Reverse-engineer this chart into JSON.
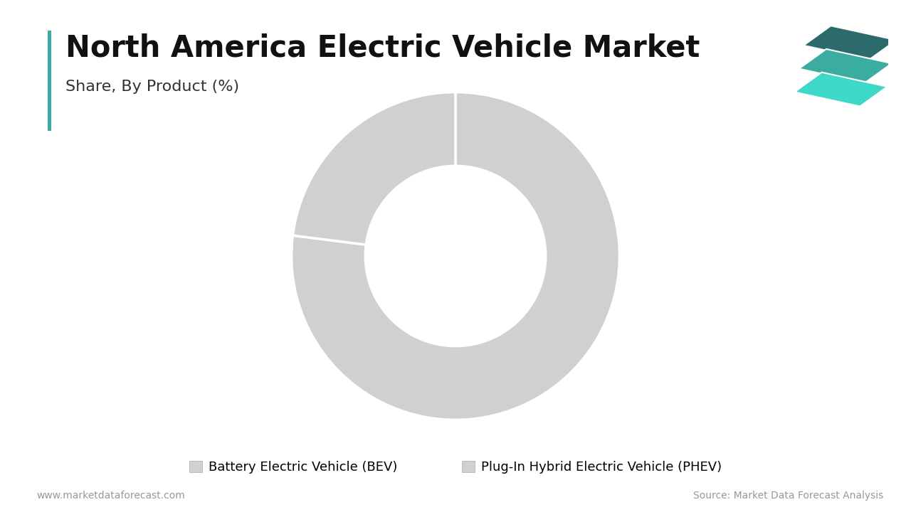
{
  "title": "North America Electric Vehicle Market",
  "subtitle": "Share, By Product (%)",
  "segments": [
    "Battery Electric Vehicle (BEV)",
    "Plug-In Hybrid Electric Vehicle (PHEV)"
  ],
  "values": [
    77,
    23
  ],
  "colors": [
    "#d0d0d0",
    "#d0d0d0"
  ],
  "wedge_edge_color": "#ffffff",
  "donut_hole_ratio": 0.55,
  "background_color": "#ffffff",
  "title_fontsize": 30,
  "subtitle_fontsize": 16,
  "legend_fontsize": 13,
  "footer_left": "www.marketdataforecast.com",
  "footer_right": "Source: Market Data Forecast Analysis",
  "footer_fontsize": 10,
  "left_bar_color": "#3aada0",
  "logo_color_top": "#2b6b6b",
  "logo_color_mid": "#3aada0",
  "logo_color_bot": "#3dd8c8"
}
